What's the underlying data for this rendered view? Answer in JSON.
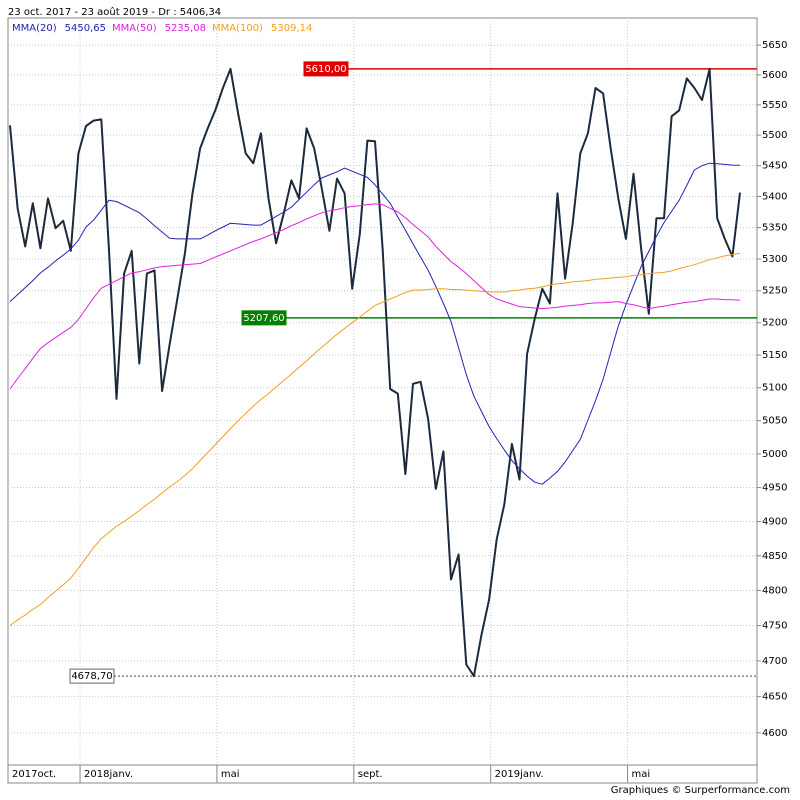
{
  "chart_data": {
    "type": "line",
    "title": "23 oct. 2017 - 23 août 2019 - Dr : 5406,34",
    "footer": "Graphiques © Surperformance.com",
    "log_scale": true,
    "grid": true,
    "categories": [
      "2017oct.",
      null,
      null,
      null,
      null,
      null,
      null,
      null,
      null,
      null,
      "2018janv.",
      null,
      null,
      null,
      null,
      null,
      null,
      null,
      null,
      null,
      null,
      null,
      null,
      null,
      null,
      null,
      null,
      null,
      "mai",
      null,
      null,
      null,
      null,
      null,
      null,
      null,
      null,
      null,
      null,
      null,
      null,
      null,
      null,
      null,
      null,
      null,
      "sept.",
      null,
      null,
      null,
      null,
      null,
      null,
      null,
      null,
      null,
      null,
      null,
      null,
      null,
      null,
      null,
      null,
      null,
      "2019janv.",
      null,
      null,
      null,
      null,
      null,
      null,
      null,
      null,
      null,
      null,
      null,
      null,
      null,
      null,
      null,
      null,
      null,
      "mai",
      null,
      null,
      null,
      null,
      null,
      null,
      null,
      null,
      null,
      null,
      null,
      null,
      null,
      null
    ],
    "ylim": [
      4556,
      5696
    ],
    "yticks": [
      4600,
      4650,
      4700,
      4750,
      4800,
      4850,
      4900,
      4950,
      5000,
      5050,
      5100,
      5150,
      5200,
      5250,
      5300,
      5350,
      5400,
      5450,
      5500,
      5550,
      5600,
      5650
    ],
    "series": [
      {
        "color": "#1c2a3e",
        "values": [
          5516,
          5381,
          5320,
          5389,
          5317,
          5397,
          5349,
          5361,
          5313,
          5470,
          5515,
          5524,
          5526,
          5317,
          5083,
          5277,
          5313,
          5137,
          5277,
          5282,
          5095,
          5167,
          5237,
          5309,
          5405,
          5478,
          5511,
          5541,
          5578,
          5610,
          5536,
          5470,
          5454,
          5503,
          5397,
          5325,
          5373,
          5426,
          5397,
          5511,
          5478,
          5413,
          5345,
          5429,
          5405,
          5253,
          5340,
          5491,
          5490,
          5317,
          5098,
          5091,
          4970,
          5106,
          5109,
          5052,
          4948,
          5004,
          4816,
          4852,
          4695,
          4678.7,
          4737,
          4787,
          4874,
          4925,
          5015,
          4962,
          5152,
          5206,
          5253,
          5230,
          5405,
          5269,
          5357,
          5470,
          5503,
          5578,
          5569,
          5478,
          5397,
          5332,
          5437,
          5317,
          5214,
          5365,
          5365,
          5531,
          5541,
          5594,
          5578,
          5558,
          5610,
          5365,
          5332,
          5304,
          5406.34
        ]
      },
      {
        "name": "MMA(20)",
        "last_value_label": "5450,65",
        "color": "#2323b4",
        "values": [
          5233,
          5244,
          5255,
          5266,
          5278,
          5287,
          5297,
          5306,
          5316,
          5330,
          5351,
          5362,
          5378,
          5394,
          5392,
          5386,
          5380,
          5374,
          5364,
          5353,
          5343,
          5333,
          5332,
          5332,
          5332,
          5332,
          5338,
          5345,
          5351,
          5357,
          5356,
          5355,
          5354,
          5354,
          5361,
          5368,
          5375,
          5383,
          5395,
          5407,
          5419,
          5430,
          5435,
          5440,
          5446,
          5441,
          5436,
          5431,
          5419,
          5404,
          5389,
          5367,
          5346,
          5324,
          5303,
          5282,
          5257,
          5230,
          5202,
          5161,
          5120,
          5087,
          5064,
          5041,
          5023,
          5006,
          4990,
          4978,
          4967,
          4958,
          4955,
          4964,
          4974,
          4988,
          5005,
          5022,
          5051,
          5080,
          5113,
          5154,
          5195,
          5228,
          5258,
          5288,
          5312,
          5336,
          5358,
          5376,
          5394,
          5418,
          5443,
          5450,
          5454,
          5453,
          5452,
          5451,
          5450.65
        ]
      },
      {
        "name": "MMA(50)",
        "last_value_label": "5235,08",
        "color": "#e020e0",
        "values": [
          5098,
          5114,
          5129,
          5145,
          5160,
          5169,
          5177,
          5185,
          5193,
          5205,
          5222,
          5239,
          5254,
          5260,
          5266,
          5272,
          5278,
          5280,
          5283,
          5286,
          5288,
          5289,
          5290,
          5291,
          5292,
          5293,
          5298,
          5303,
          5308,
          5313,
          5318,
          5323,
          5328,
          5332,
          5337,
          5342,
          5347,
          5353,
          5358,
          5364,
          5369,
          5374,
          5377,
          5379,
          5382,
          5384,
          5385,
          5387,
          5388,
          5387,
          5381,
          5375,
          5366,
          5355,
          5345,
          5335,
          5320,
          5308,
          5296,
          5287,
          5277,
          5266,
          5255,
          5244,
          5237,
          5233,
          5229,
          5225,
          5224,
          5223,
          5222,
          5223,
          5224,
          5226,
          5227,
          5228,
          5230,
          5231,
          5231,
          5232,
          5233,
          5230,
          5228,
          5225,
          5222,
          5224,
          5226,
          5228,
          5230,
          5232,
          5233,
          5235,
          5237,
          5237,
          5236,
          5236,
          5235.08
        ]
      },
      {
        "name": "MMA(100)",
        "last_value_label": "5309,14",
        "color": "#f0a020",
        "values": [
          4750,
          4758,
          4765,
          4773,
          4780,
          4790,
          4799,
          4808,
          4818,
          4832,
          4847,
          4862,
          4875,
          4884,
          4893,
          4900,
          4908,
          4916,
          4925,
          4933,
          4942,
          4951,
          4959,
          4968,
          4978,
          4990,
          5002,
          5014,
          5026,
          5038,
          5050,
          5061,
          5072,
          5082,
          5091,
          5101,
          5111,
          5121,
          5131,
          5141,
          5152,
          5162,
          5172,
          5182,
          5191,
          5200,
          5209,
          5218,
          5227,
          5232,
          5237,
          5242,
          5247,
          5251,
          5251,
          5252,
          5253,
          5253,
          5252,
          5252,
          5251,
          5250,
          5249,
          5248,
          5248,
          5248,
          5250,
          5251,
          5253,
          5254,
          5256,
          5259,
          5261,
          5262,
          5264,
          5265,
          5266,
          5268,
          5269,
          5270,
          5271,
          5272,
          5274,
          5275,
          5277,
          5278,
          5279,
          5281,
          5285,
          5288,
          5291,
          5295,
          5299,
          5302,
          5305,
          5307,
          5309.14
        ]
      }
    ],
    "annotations": [
      {
        "value": 5610,
        "label": "5610,00",
        "color": "#e00000",
        "style": "solid"
      },
      {
        "value": 5207.6,
        "label": "5207,60",
        "color": "#008000",
        "style": "solid"
      },
      {
        "value": 4678.7,
        "label": "4678,70",
        "color": "#444444",
        "style": "dashed"
      }
    ]
  }
}
